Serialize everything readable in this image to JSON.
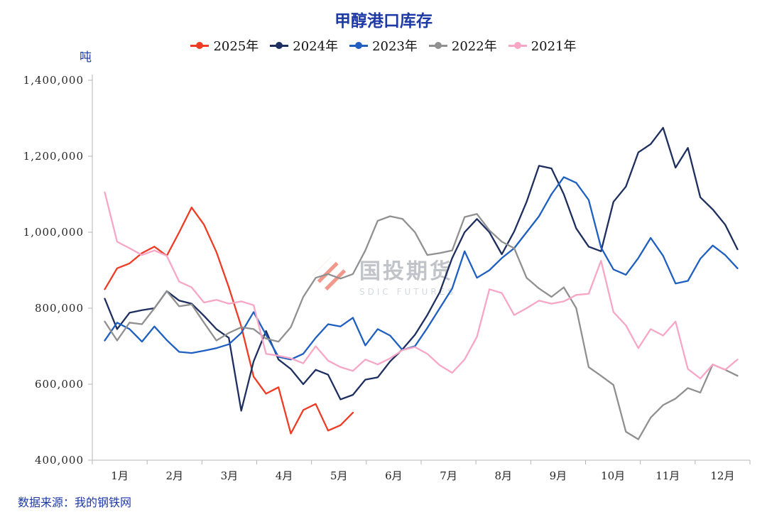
{
  "title": "甲醇港口库存",
  "source": "数据来源：我的钢铁网",
  "watermark": {
    "logo_icon": "sdic-diamond-stripes-icon",
    "name": "国投期货",
    "subtitle": "SDIC FUTURES"
  },
  "colors": {
    "accent": "#1c39a6",
    "axis": "#b5b5b5",
    "tick_text": "#262626"
  },
  "chart_data": {
    "type": "line",
    "title": "甲醇港口库存",
    "xlabel": "",
    "ylabel": "吨",
    "ylim": [
      400000,
      1400000
    ],
    "ytick_interval": 200000,
    "ytick_labels": [
      "400,000",
      "600,000",
      "800,000",
      "1,000,000",
      "1,200,000",
      "1,400,000"
    ],
    "x_categories": [
      "1月",
      "2月",
      "3月",
      "4月",
      "5月",
      "6月",
      "7月",
      "8月",
      "9月",
      "10月",
      "11月",
      "12月"
    ],
    "x_resolution": "weekly",
    "grid": false,
    "legend_position": "top",
    "legend_marker": "line-with-dot",
    "series": [
      {
        "name": "2025年",
        "color": "#ee3b24",
        "values": [
          850000,
          905000,
          918000,
          945000,
          962000,
          938000,
          1000000,
          1065000,
          1020000,
          948000,
          855000,
          752000,
          620000,
          575000,
          592000,
          470000,
          532000,
          548000,
          478000,
          492000,
          525000
        ]
      },
      {
        "name": "2024年",
        "color": "#1d2e5f",
        "values": [
          825000,
          745000,
          788000,
          795000,
          800000,
          845000,
          820000,
          812000,
          780000,
          745000,
          722000,
          530000,
          660000,
          740000,
          665000,
          640000,
          600000,
          638000,
          625000,
          560000,
          572000,
          612000,
          618000,
          660000,
          692000,
          730000,
          782000,
          842000,
          932000,
          1000000,
          1035000,
          1000000,
          942000,
          1002000,
          1080000,
          1175000,
          1168000,
          1100000,
          1010000,
          962000,
          950000,
          1080000,
          1120000,
          1210000,
          1232000,
          1275000,
          1170000,
          1222000,
          1092000,
          1060000,
          1020000,
          955000
        ]
      },
      {
        "name": "2023年",
        "color": "#1e5fc0",
        "values": [
          715000,
          762000,
          745000,
          712000,
          752000,
          716000,
          685000,
          682000,
          688000,
          695000,
          705000,
          735000,
          790000,
          730000,
          672000,
          665000,
          680000,
          722000,
          758000,
          752000,
          775000,
          702000,
          745000,
          728000,
          690000,
          700000,
          748000,
          800000,
          852000,
          950000,
          880000,
          900000,
          932000,
          958000,
          1000000,
          1042000,
          1100000,
          1145000,
          1130000,
          1085000,
          960000,
          902000,
          888000,
          932000,
          985000,
          938000,
          865000,
          872000,
          930000,
          965000,
          940000,
          905000
        ]
      },
      {
        "name": "2022年",
        "color": "#909090",
        "values": [
          765000,
          715000,
          762000,
          758000,
          800000,
          845000,
          805000,
          810000,
          762000,
          715000,
          735000,
          750000,
          745000,
          720000,
          712000,
          750000,
          830000,
          880000,
          890000,
          878000,
          890000,
          952000,
          1030000,
          1042000,
          1035000,
          1000000,
          940000,
          945000,
          952000,
          1040000,
          1048000,
          1005000,
          975000,
          958000,
          880000,
          852000,
          830000,
          855000,
          800000,
          645000,
          622000,
          598000,
          475000,
          455000,
          512000,
          545000,
          562000,
          590000,
          578000,
          652000,
          638000,
          622000
        ]
      },
      {
        "name": "2021年",
        "color": "#f7a6c5",
        "values": [
          1105000,
          975000,
          958000,
          940000,
          952000,
          938000,
          870000,
          855000,
          815000,
          822000,
          812000,
          818000,
          808000,
          680000,
          675000,
          668000,
          655000,
          700000,
          662000,
          645000,
          635000,
          665000,
          652000,
          668000,
          690000,
          698000,
          680000,
          650000,
          630000,
          665000,
          725000,
          850000,
          840000,
          782000,
          800000,
          820000,
          812000,
          818000,
          835000,
          838000,
          925000,
          790000,
          755000,
          695000,
          745000,
          728000,
          765000,
          640000,
          615000,
          652000,
          638000,
          665000
        ]
      }
    ]
  }
}
